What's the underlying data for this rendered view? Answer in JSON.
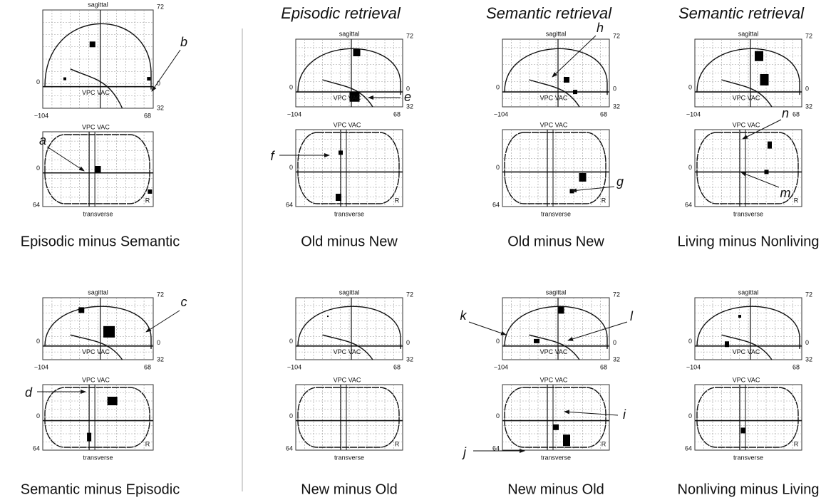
{
  "headers": [
    "Episodic retrieval",
    "Semantic retrieval",
    "Semantic retrieval"
  ],
  "projection_labels": {
    "sagittal": "sagittal",
    "sagittal_top": "72",
    "sagittal_left": "0",
    "sagittal_right": "0",
    "sagittal_bottom_right": "32",
    "x_min": "−104",
    "x_max": "68",
    "vpc_vac": "VPC VAC",
    "transverse_left": "0",
    "transverse_bottom_left": "64",
    "right_side": "R",
    "transverse": "transverse"
  },
  "panels": [
    {
      "caption": "Episodic minus Semantic",
      "labels": [
        "a",
        "b"
      ]
    },
    {
      "caption": "Old minus New",
      "labels": [
        "e",
        "f"
      ]
    },
    {
      "caption": "Old minus New",
      "labels": [
        "h",
        "g"
      ]
    },
    {
      "caption": "Living minus Nonliving",
      "labels": [
        "n",
        "m"
      ]
    },
    {
      "caption": "Semantic minus Episodic",
      "labels": [
        "c",
        "d"
      ]
    },
    {
      "caption": "New minus Old",
      "labels": []
    },
    {
      "caption": "New minus Old",
      "labels": [
        "k",
        "l",
        "i",
        "j"
      ]
    },
    {
      "caption": "Nonliving minus Living",
      "labels": []
    }
  ]
}
